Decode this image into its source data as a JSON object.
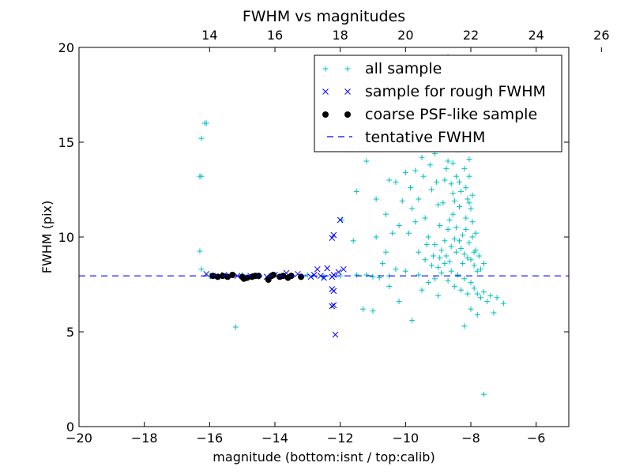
{
  "chart_data": {
    "type": "scatter",
    "title": "FWHM vs magnitudes",
    "xlabel": "magnitude (bottom:isnt / top:calib)",
    "ylabel": "FWHM (pix)",
    "xlim": [
      -20,
      -5
    ],
    "ylim": [
      0,
      20
    ],
    "xticks": [
      -20,
      -18,
      -16,
      -14,
      -12,
      -10,
      -8,
      -6
    ],
    "xtick_labels": [
      "−20",
      "−18",
      "−16",
      "−14",
      "−12",
      "−10",
      "−8",
      "−6"
    ],
    "yticks": [
      0,
      5,
      10,
      15,
      20
    ],
    "ytick_labels": [
      "0",
      "5",
      "10",
      "15",
      "20"
    ],
    "top_axis": {
      "offset": 30,
      "ticks": [
        14,
        16,
        18,
        20,
        22,
        24,
        26
      ],
      "tick_labels": [
        "14",
        "16",
        "18",
        "20",
        "22",
        "24",
        "26"
      ]
    },
    "grid": false,
    "legend_placement": "top-right",
    "hline": {
      "y": 7.95,
      "name": "tentative FWHM",
      "color": "#0000ff",
      "style": "dashed"
    },
    "series": [
      {
        "name": "all sample",
        "marker": "plus",
        "color": "#00bfbf",
        "points": [
          [
            -16.3,
            13.2
          ],
          [
            -16.25,
            13.2
          ],
          [
            -16.25,
            15.2
          ],
          [
            -16.15,
            16.0
          ],
          [
            -16.1,
            16.0
          ],
          [
            -16.3,
            9.25
          ],
          [
            -16.25,
            8.3
          ],
          [
            -15.2,
            5.25
          ],
          [
            -16.0,
            7.95
          ],
          [
            -15.5,
            7.95
          ],
          [
            -15.0,
            8.0
          ],
          [
            -14.5,
            7.9
          ],
          [
            -14.0,
            8.0
          ],
          [
            -13.5,
            7.95
          ],
          [
            -13.0,
            8.0
          ],
          [
            -12.5,
            7.9
          ],
          [
            -12.0,
            7.95
          ],
          [
            -11.5,
            8.0
          ],
          [
            -11.0,
            7.9
          ],
          [
            -10.5,
            7.95
          ],
          [
            -11.95,
            10.9
          ],
          [
            -11.5,
            12.4
          ],
          [
            -11.2,
            14.0
          ],
          [
            -10.9,
            12.0
          ],
          [
            -10.6,
            11.2
          ],
          [
            -10.2,
            10.6
          ],
          [
            -11.6,
            9.8
          ],
          [
            -11.3,
            6.2
          ],
          [
            -11.0,
            6.1
          ],
          [
            -10.2,
            6.6
          ],
          [
            -9.8,
            5.6
          ],
          [
            -10.5,
            7.4
          ],
          [
            -9.5,
            7.2
          ],
          [
            -9.0,
            6.9
          ],
          [
            -10.0,
            13.4
          ],
          [
            -10.3,
            12.9
          ],
          [
            -10.5,
            13.0
          ],
          [
            -9.7,
            13.5
          ],
          [
            -9.5,
            14.2
          ],
          [
            -9.3,
            15.0
          ],
          [
            -9.0,
            15.5
          ],
          [
            -9.8,
            11.5
          ],
          [
            -9.6,
            12.0
          ],
          [
            -9.4,
            11.0
          ],
          [
            -9.2,
            12.5
          ],
          [
            -9.0,
            11.7
          ],
          [
            -8.8,
            13.0
          ],
          [
            -8.7,
            14.0
          ],
          [
            -8.5,
            16.0
          ],
          [
            -8.4,
            17.0
          ],
          [
            -8.3,
            15.5
          ],
          [
            -8.6,
            12.8
          ],
          [
            -8.55,
            11.2
          ],
          [
            -8.45,
            10.5
          ],
          [
            -8.35,
            9.8
          ],
          [
            -8.25,
            10.1
          ],
          [
            -8.15,
            11.0
          ],
          [
            -8.1,
            12.0
          ],
          [
            -8.05,
            13.2
          ],
          [
            -8.0,
            11.5
          ],
          [
            -7.95,
            10.0
          ],
          [
            -7.9,
            9.2
          ],
          [
            -9.9,
            10.2
          ],
          [
            -9.7,
            10.8
          ],
          [
            -9.3,
            10.0
          ],
          [
            -9.1,
            9.6
          ],
          [
            -8.9,
            9.3
          ],
          [
            -8.75,
            9.0
          ],
          [
            -8.65,
            8.7
          ],
          [
            -9.6,
            9.2
          ],
          [
            -9.4,
            8.8
          ],
          [
            -9.2,
            8.5
          ],
          [
            -9.0,
            8.4
          ],
          [
            -8.8,
            8.6
          ],
          [
            -8.6,
            8.2
          ],
          [
            -8.4,
            8.0
          ],
          [
            -8.2,
            7.8
          ],
          [
            -8.0,
            7.6
          ],
          [
            -7.9,
            7.3
          ],
          [
            -7.8,
            7.0
          ],
          [
            -7.7,
            6.8
          ],
          [
            -7.6,
            7.1
          ],
          [
            -7.5,
            6.6
          ],
          [
            -7.4,
            6.9
          ],
          [
            -7.2,
            6.8
          ],
          [
            -7.0,
            6.5
          ],
          [
            -7.3,
            6.0
          ],
          [
            -7.8,
            5.9
          ],
          [
            -8.0,
            6.2
          ],
          [
            -8.2,
            5.3
          ],
          [
            -7.6,
            1.7
          ],
          [
            -8.6,
            9.5
          ],
          [
            -8.5,
            9.9
          ],
          [
            -8.3,
            9.4
          ],
          [
            -8.2,
            9.1
          ],
          [
            -8.1,
            8.9
          ],
          [
            -8.0,
            8.8
          ],
          [
            -7.9,
            8.5
          ],
          [
            -7.8,
            8.2
          ],
          [
            -7.7,
            8.3
          ],
          [
            -7.6,
            8.6
          ],
          [
            -8.7,
            10.4
          ],
          [
            -8.5,
            11.9
          ],
          [
            -8.3,
            12.4
          ],
          [
            -8.2,
            13.6
          ],
          [
            -8.4,
            14.6
          ],
          [
            -8.6,
            15.2
          ],
          [
            -8.8,
            16.5
          ],
          [
            -9.0,
            17.5
          ],
          [
            -9.2,
            18.2
          ],
          [
            -8.9,
            18.7
          ],
          [
            -8.7,
            19.5
          ],
          [
            -9.6,
            19.3
          ],
          [
            -9.4,
            18.0
          ],
          [
            -10.1,
            17.8
          ],
          [
            -9.9,
            16.8
          ],
          [
            -9.5,
            16.6
          ],
          [
            -9.1,
            14.4
          ],
          [
            -8.75,
            13.6
          ],
          [
            -8.55,
            13.9
          ],
          [
            -8.35,
            12.9
          ],
          [
            -8.15,
            12.6
          ],
          [
            -7.95,
            12.2
          ],
          [
            -8.45,
            9.2
          ],
          [
            -8.25,
            8.6
          ],
          [
            -8.05,
            9.7
          ],
          [
            -7.85,
            9.3
          ],
          [
            -7.75,
            9.0
          ],
          [
            -9.3,
            7.6
          ],
          [
            -9.1,
            7.8
          ],
          [
            -8.9,
            8.1
          ],
          [
            -8.7,
            7.7
          ],
          [
            -8.5,
            7.4
          ],
          [
            -8.3,
            7.2
          ],
          [
            -8.1,
            7.0
          ],
          [
            -10.0,
            8.2
          ],
          [
            -10.8,
            7.85
          ],
          [
            -11.2,
            8.0
          ],
          [
            -9.6,
            8.0
          ],
          [
            -8.95,
            10.6
          ],
          [
            -8.85,
            11.8
          ],
          [
            -8.65,
            10.9
          ],
          [
            -8.55,
            12.3
          ],
          [
            -8.45,
            13.2
          ],
          [
            -8.35,
            11.6
          ],
          [
            -8.15,
            10.4
          ],
          [
            -8.05,
            11.8
          ],
          [
            -7.95,
            10.8
          ],
          [
            -7.85,
            10.2
          ],
          [
            -9.35,
            9.6
          ],
          [
            -9.15,
            9.0
          ],
          [
            -8.95,
            8.9
          ],
          [
            -8.8,
            9.8
          ],
          [
            -10.7,
            8.6
          ],
          [
            -10.3,
            8.3
          ],
          [
            -10.6,
            9.2
          ],
          [
            -10.9,
            10.0
          ],
          [
            -10.4,
            10.2
          ],
          [
            -10.1,
            11.9
          ],
          [
            -9.85,
            12.6
          ],
          [
            -9.75,
            14.9
          ],
          [
            -9.45,
            13.2
          ],
          [
            -9.25,
            13.8
          ],
          [
            -9.05,
            12.9
          ],
          [
            -8.85,
            14.8
          ],
          [
            -8.65,
            17.9
          ],
          [
            -8.45,
            18.6
          ],
          [
            -8.25,
            15.9
          ],
          [
            -8.05,
            14.1
          ],
          [
            -9.55,
            17.2
          ],
          [
            -9.35,
            16.1
          ],
          [
            -9.15,
            15.7
          ],
          [
            -10.25,
            16.3
          ],
          [
            -10.4,
            15.1
          ]
        ]
      },
      {
        "name": "sample for rough FWHM",
        "marker": "x",
        "color": "#0000ff",
        "points": [
          [
            -16.1,
            8.05
          ],
          [
            -15.9,
            7.95
          ],
          [
            -15.55,
            8.0
          ],
          [
            -15.15,
            7.95
          ],
          [
            -14.75,
            7.95
          ],
          [
            -14.25,
            7.9
          ],
          [
            -14.0,
            8.0
          ],
          [
            -13.65,
            8.1
          ],
          [
            -13.3,
            8.05
          ],
          [
            -12.8,
            8.0
          ],
          [
            -12.7,
            8.3
          ],
          [
            -12.6,
            7.95
          ],
          [
            -12.4,
            8.35
          ],
          [
            -12.25,
            7.9
          ],
          [
            -12.25,
            9.95
          ],
          [
            -12.2,
            10.1
          ],
          [
            -12.0,
            10.9
          ],
          [
            -12.25,
            7.25
          ],
          [
            -12.2,
            7.15
          ],
          [
            -12.25,
            6.35
          ],
          [
            -12.2,
            6.4
          ],
          [
            -12.15,
            4.85
          ],
          [
            -12.2,
            8.0
          ],
          [
            -11.9,
            8.3
          ],
          [
            -12.05,
            8.15
          ],
          [
            -12.5,
            7.85
          ],
          [
            -12.9,
            7.9
          ]
        ]
      },
      {
        "name": "coarse PSF-like sample",
        "marker": "dot",
        "color": "#000000",
        "points": [
          [
            -15.9,
            7.95
          ],
          [
            -15.75,
            7.9
          ],
          [
            -15.6,
            7.95
          ],
          [
            -15.45,
            7.9
          ],
          [
            -15.3,
            8.0
          ],
          [
            -15.0,
            7.9
          ],
          [
            -14.95,
            7.8
          ],
          [
            -14.85,
            7.85
          ],
          [
            -14.7,
            7.9
          ],
          [
            -14.6,
            7.95
          ],
          [
            -14.2,
            7.75
          ],
          [
            -14.1,
            7.95
          ],
          [
            -13.85,
            7.9
          ],
          [
            -13.75,
            7.95
          ],
          [
            -13.6,
            7.85
          ],
          [
            -13.5,
            7.95
          ],
          [
            -13.2,
            7.9
          ],
          [
            -14.5,
            7.95
          ],
          [
            -14.05,
            8.0
          ]
        ]
      }
    ]
  }
}
